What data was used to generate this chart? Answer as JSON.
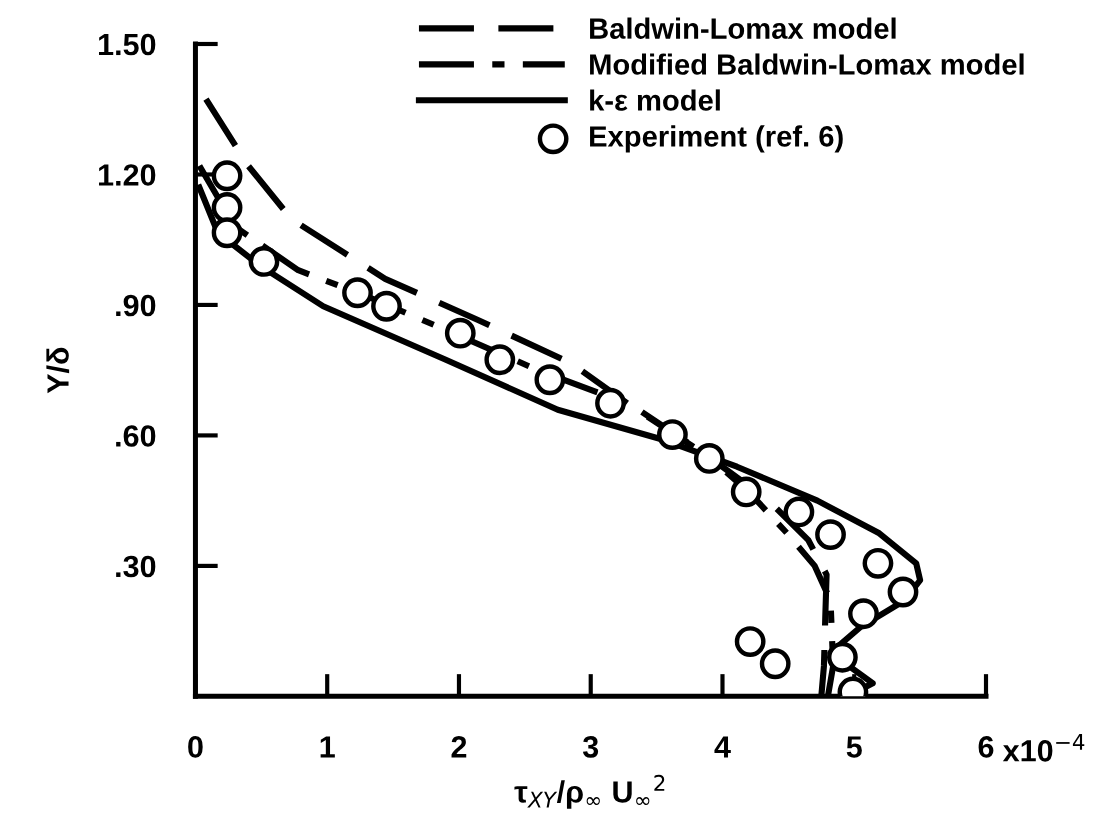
{
  "chart_data": {
    "type": "line",
    "xlabel": "τ$_{XY}$/ρ$_{∞}$ U$_{∞}$$^{2}$",
    "ylabel": "Y/δ",
    "xlim": [
      0,
      6
    ],
    "ylim": [
      0,
      1.5
    ],
    "xticks": [
      0,
      1,
      2,
      3,
      4,
      5,
      6
    ],
    "annotations": [
      "x10$^{−4}$"
    ],
    "yticks": [
      {
        "value": 0.3,
        "label": ".30"
      },
      {
        "value": 0.6,
        "label": ".60"
      },
      {
        "value": 0.9,
        "label": ".90"
      },
      {
        "value": 1.2,
        "label": "1.20"
      },
      {
        "value": 1.5,
        "label": "1.50"
      }
    ],
    "grid": false,
    "legend": "top right",
    "series": [
      {
        "name": "Baldwin-Lomax model",
        "line_style": "dashed",
        "color": "#000000",
        "x": [
          0.08,
          0.4,
          0.73,
          1.44,
          2.14,
          2.85,
          3.31,
          3.9,
          4.35,
          4.65,
          4.79,
          4.78,
          4.77,
          4.75
        ],
        "values": [
          1.373,
          1.22,
          1.097,
          0.96,
          0.866,
          0.766,
          0.667,
          0.55,
          0.45,
          0.36,
          0.28,
          0.18,
          0.07,
          0
        ]
      },
      {
        "name": "Modified Baldwin-Lomax model",
        "line_style": "dashdot",
        "color": "#000000",
        "x": [
          0.03,
          0.3,
          0.78,
          1.3,
          1.92,
          2.6,
          3.31,
          3.9,
          4.2,
          4.49,
          4.7,
          4.82,
          4.84,
          4.8
        ],
        "values": [
          1.22,
          1.08,
          0.98,
          0.92,
          0.84,
          0.75,
          0.67,
          0.55,
          0.47,
          0.375,
          0.3,
          0.22,
          0.07,
          0
        ]
      },
      {
        "name": "k-ε model",
        "line_style": "solid",
        "color": "#000000",
        "x": [
          0.03,
          0.17,
          0.49,
          0.97,
          1.9,
          2.75,
          3.55,
          4.11,
          4.72,
          5.19,
          5.47,
          5.5,
          5.38,
          5.05,
          4.82,
          4.96,
          5.14,
          4.95
        ],
        "values": [
          1.17,
          1.066,
          0.99,
          0.897,
          0.774,
          0.659,
          0.59,
          0.528,
          0.45,
          0.375,
          0.306,
          0.267,
          0.22,
          0.16,
          0.1,
          0.07,
          0.03,
          0
        ]
      },
      {
        "name": "Experiment (ref. 6)",
        "type": "scatter",
        "marker": "circle",
        "color": "#000000",
        "x": [
          0.24,
          0.24,
          0.24,
          0.52,
          1.23,
          1.45,
          2.01,
          2.31,
          2.69,
          3.15,
          3.62,
          3.9,
          4.18,
          4.58,
          4.82,
          5.18,
          5.37,
          5.07,
          4.91,
          4.21,
          4.4,
          4.99
        ],
        "values": [
          1.197,
          1.124,
          1.066,
          1.0,
          0.928,
          0.897,
          0.835,
          0.774,
          0.728,
          0.674,
          0.602,
          0.547,
          0.47,
          0.424,
          0.372,
          0.306,
          0.24,
          0.19,
          0.09,
          0.126,
          0.075,
          0.01
        ]
      }
    ]
  }
}
